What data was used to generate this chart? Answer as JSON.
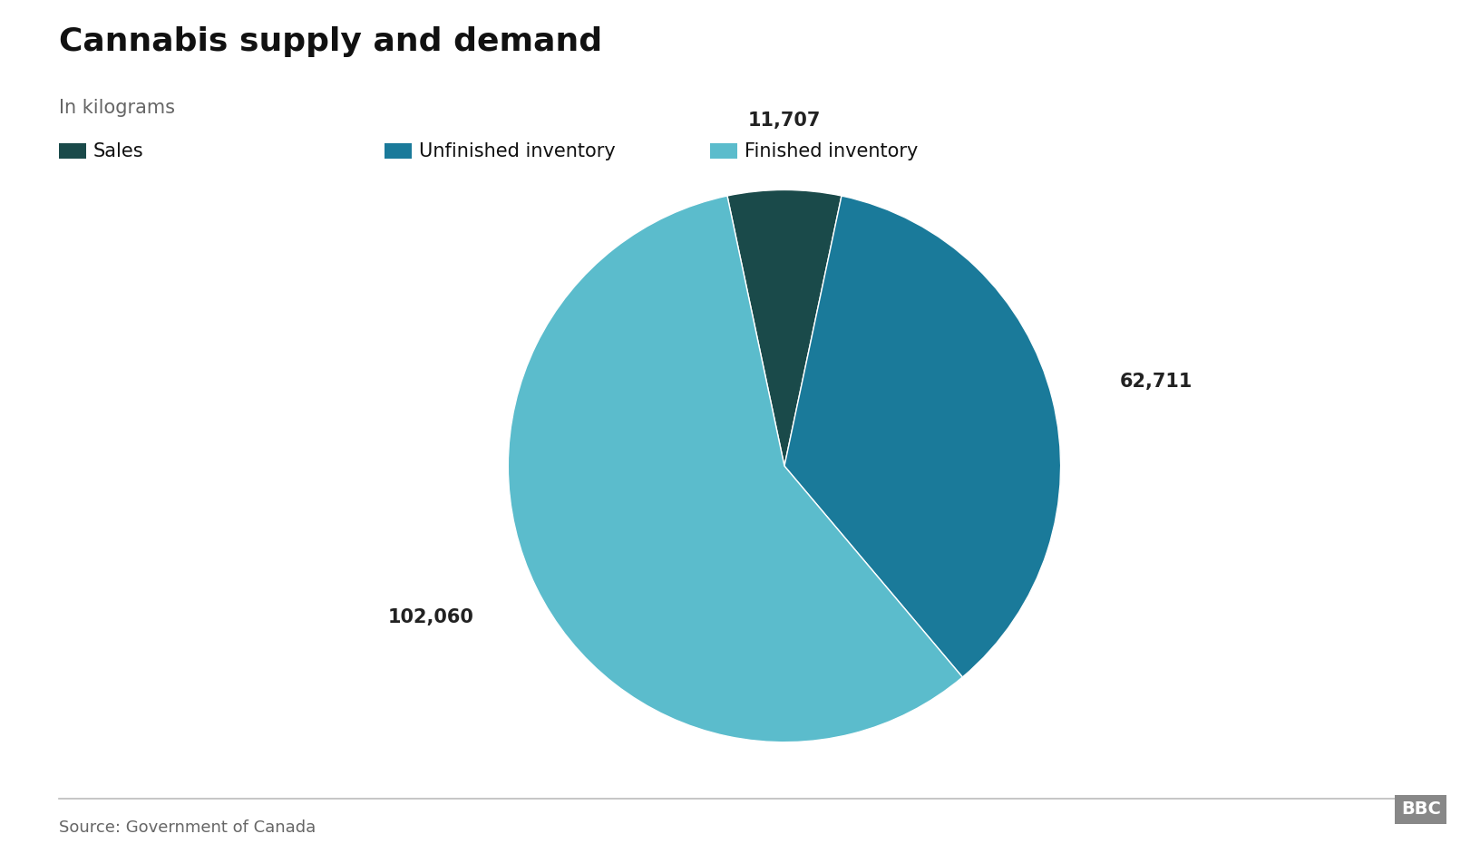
{
  "title": "Cannabis supply and demand",
  "subtitle": "In kilograms",
  "source": "Source: Government of Canada",
  "bbc_label": "BBC",
  "slices": [
    {
      "label": "Sales",
      "value": 11707,
      "color": "#1a4a4a"
    },
    {
      "label": "Unfinished inventory",
      "value": 62711,
      "color": "#1a7a9a"
    },
    {
      "label": "Finished inventory",
      "value": 102060,
      "color": "#5bbccc"
    }
  ],
  "label_values": [
    "11,707",
    "62,711",
    "102,060"
  ],
  "background_color": "#ffffff",
  "title_fontsize": 26,
  "subtitle_fontsize": 15,
  "legend_fontsize": 15,
  "label_fontsize": 15,
  "source_fontsize": 13
}
